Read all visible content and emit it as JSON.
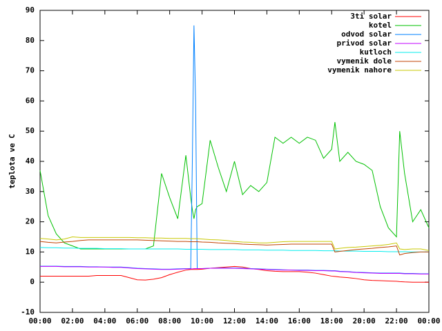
{
  "chart_data": {
    "type": "line",
    "ylabel": "teplota ve C",
    "x": [
      0,
      0.5,
      1,
      1.5,
      2,
      2.5,
      3,
      3.5,
      4,
      4.5,
      5,
      5.5,
      6,
      6.5,
      7,
      7.5,
      8,
      8.5,
      9,
      9.3,
      9.4,
      9.5,
      9.6,
      9.7,
      10,
      10.5,
      11,
      11.5,
      12,
      12.5,
      13,
      13.5,
      14,
      14.5,
      15,
      15.5,
      16,
      16.5,
      17,
      17.5,
      18,
      18.2,
      18.5,
      19,
      19.5,
      20,
      20.5,
      21,
      21.5,
      22,
      22.2,
      22.5,
      23,
      23.5,
      24
    ],
    "xlim": [
      0,
      24
    ],
    "xticks": [
      {
        "value": 0,
        "label": "00:00"
      },
      {
        "value": 2,
        "label": "02:00"
      },
      {
        "value": 4,
        "label": "04:00"
      },
      {
        "value": 6,
        "label": "06:00"
      },
      {
        "value": 8,
        "label": "08:00"
      },
      {
        "value": 10,
        "label": "10:00"
      },
      {
        "value": 12,
        "label": "12:00"
      },
      {
        "value": 14,
        "label": "14:00"
      },
      {
        "value": 16,
        "label": "16:00"
      },
      {
        "value": 18,
        "label": "18:00"
      },
      {
        "value": 20,
        "label": "20:00"
      },
      {
        "value": 22,
        "label": "22:00"
      },
      {
        "value": 24,
        "label": "00:00"
      }
    ],
    "ylim": [
      -10,
      90
    ],
    "yticks": [
      -10,
      0,
      10,
      20,
      30,
      40,
      50,
      60,
      70,
      80,
      90
    ],
    "legend": "top right",
    "series": [
      {
        "name": "3ti solar",
        "color": "#ff0000",
        "values": [
          2,
          2,
          2,
          2,
          2,
          2,
          2,
          2.2,
          2.2,
          2.2,
          2.2,
          1.5,
          0.8,
          0.7,
          1,
          1.5,
          2.5,
          3.3,
          4,
          4.2,
          4.2,
          4.2,
          4.2,
          4.2,
          4.3,
          4.6,
          4.8,
          5,
          5.2,
          5,
          4.5,
          4.2,
          3.8,
          3.6,
          3.5,
          3.5,
          3.5,
          3.3,
          3,
          2.5,
          2,
          1.9,
          1.7,
          1.5,
          1.2,
          0.8,
          0.6,
          0.5,
          0.4,
          0.3,
          0.2,
          0.1,
          0,
          0,
          0
        ]
      },
      {
        "name": "kotel",
        "color": "#00c000",
        "values": [
          37,
          22,
          16,
          13,
          12,
          11,
          11,
          11,
          11,
          11,
          11,
          11,
          11,
          11,
          12,
          36,
          28,
          21,
          42,
          28,
          24,
          21,
          24,
          25,
          26,
          47,
          38,
          30,
          40,
          29,
          32,
          30,
          33,
          48,
          46,
          48,
          46,
          48,
          47,
          41,
          44,
          53,
          40,
          43,
          40,
          39,
          37,
          25,
          18,
          15,
          50,
          36,
          20,
          24,
          18
        ]
      },
      {
        "name": "odvod solar",
        "color": "#0080ff",
        "values": [
          5.3,
          5.3,
          5.3,
          5.2,
          5.2,
          5.2,
          5.1,
          5.1,
          5,
          5,
          5,
          4.8,
          4.6,
          4.5,
          4.4,
          4.3,
          4.3,
          4.4,
          4.5,
          4.5,
          40,
          85,
          60,
          4.5,
          4.5,
          4.6,
          4.7,
          4.7,
          4.7,
          4.6,
          4.5,
          4.4,
          4.3,
          4.2,
          4.1,
          4,
          4,
          4,
          3.9,
          3.9,
          3.8,
          3.8,
          3.6,
          3.5,
          3.3,
          3.2,
          3.1,
          3,
          3,
          3,
          3,
          2.9,
          2.9,
          2.8,
          2.8
        ]
      },
      {
        "name": "privod solar",
        "color": "#c000ff",
        "values": [
          5.2,
          5.2,
          5.2,
          5.1,
          5.1,
          5.1,
          5,
          5,
          5,
          4.9,
          4.9,
          4.7,
          4.5,
          4.4,
          4.3,
          4.2,
          4.2,
          4.3,
          4.4,
          4.4,
          4.4,
          4.5,
          4.5,
          4.5,
          4.5,
          4.6,
          4.6,
          4.6,
          4.6,
          4.5,
          4.4,
          4.3,
          4.2,
          4.1,
          4,
          4,
          3.9,
          3.9,
          3.8,
          3.8,
          3.7,
          3.7,
          3.5,
          3.4,
          3.2,
          3.1,
          3,
          2.9,
          2.9,
          2.9,
          2.9,
          2.8,
          2.8,
          2.7,
          2.7
        ]
      },
      {
        "name": "kutloch",
        "color": "#00eeee",
        "values": [
          11.5,
          11.4,
          11.4,
          11.3,
          11.3,
          11.2,
          11.2,
          11.2,
          11.1,
          11.1,
          11.1,
          11,
          11,
          11,
          11,
          11,
          11,
          11,
          10.9,
          10.9,
          10.9,
          10.9,
          10.9,
          10.9,
          10.9,
          10.8,
          10.8,
          10.8,
          10.8,
          10.7,
          10.7,
          10.7,
          10.6,
          10.6,
          10.6,
          10.5,
          10.5,
          10.5,
          10.5,
          10.4,
          10.4,
          10.4,
          10.3,
          10.3,
          10.3,
          10.2,
          10.2,
          10.2,
          10.1,
          10.1,
          10.1,
          10.1,
          10,
          10,
          10
        ]
      },
      {
        "name": "vymenik dole",
        "color": "#c04000",
        "values": [
          13.5,
          13.2,
          13,
          13.3,
          13.5,
          13.8,
          14,
          14,
          14,
          14,
          14,
          14,
          14,
          13.9,
          13.8,
          13.7,
          13.6,
          13.5,
          13.5,
          13.4,
          13.4,
          13.4,
          13.4,
          13.4,
          13.3,
          13.2,
          13,
          12.9,
          12.8,
          12.6,
          12.5,
          12.4,
          12.3,
          12.4,
          12.5,
          12.6,
          12.6,
          12.6,
          12.6,
          12.6,
          12.6,
          10,
          10.2,
          10.5,
          10.8,
          11,
          11.2,
          11.5,
          11.7,
          12,
          9,
          9.5,
          9.8,
          10,
          10
        ]
      },
      {
        "name": "vymenik nahore",
        "color": "#c8c800",
        "values": [
          14.5,
          14.3,
          14,
          14.3,
          15,
          14.8,
          14.8,
          14.8,
          14.8,
          14.8,
          14.8,
          14.8,
          14.7,
          14.7,
          14.6,
          14.6,
          14.5,
          14.5,
          14.5,
          14.4,
          14.4,
          14.4,
          14.4,
          14.4,
          14.3,
          14.1,
          14,
          13.8,
          13.5,
          13.3,
          13.2,
          13,
          13,
          13.2,
          13.4,
          13.5,
          13.5,
          13.5,
          13.5,
          13.5,
          13.5,
          11,
          11.2,
          11.5,
          11.6,
          11.8,
          12,
          12.2,
          12.5,
          13,
          11,
          10.8,
          11,
          11,
          10.5
        ]
      }
    ]
  }
}
